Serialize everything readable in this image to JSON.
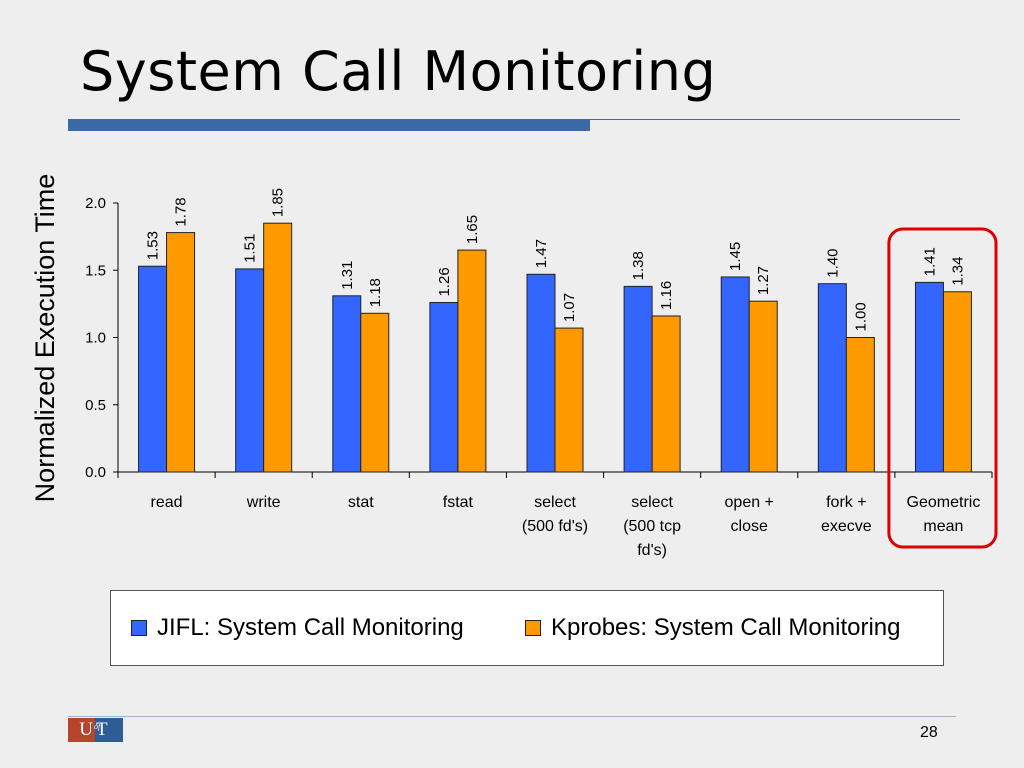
{
  "slide": {
    "title": "System Call Monitoring",
    "page_number": "28",
    "logo_text": [
      "U",
      "of",
      "T"
    ]
  },
  "colors": {
    "jifl": "#3366ff",
    "kprobes": "#ff9900",
    "highlight": "#dd0000",
    "title_rule": "#3a6aa6"
  },
  "chart_data": {
    "type": "bar",
    "ylabel": "Normalized Execution Time",
    "xlabel": "",
    "ylim": [
      0,
      2.0
    ],
    "yticks": [
      "0.0",
      "0.5",
      "1.0",
      "1.5",
      "2.0"
    ],
    "categories": [
      [
        "read"
      ],
      [
        "write"
      ],
      [
        "stat"
      ],
      [
        "fstat"
      ],
      [
        "select",
        "(500 fd's)"
      ],
      [
        "select",
        "(500 tcp",
        "fd's)"
      ],
      [
        "open +",
        "close"
      ],
      [
        "fork +",
        "execve"
      ],
      [
        "Geometric",
        "mean"
      ]
    ],
    "series": [
      {
        "name": "JIFL: System Call Monitoring",
        "values": [
          1.53,
          1.51,
          1.31,
          1.26,
          1.47,
          1.38,
          1.45,
          1.4,
          1.41
        ],
        "labels": [
          "1.53",
          "1.51",
          "1.31",
          "1.26",
          "1.47",
          "1.38",
          "1.45",
          "1.40",
          "1.41"
        ]
      },
      {
        "name": "Kprobes: System Call Monitoring",
        "values": [
          1.78,
          1.85,
          1.18,
          1.65,
          1.07,
          1.16,
          1.27,
          1.0,
          1.34
        ],
        "labels": [
          "1.78",
          "1.85",
          "1.18",
          "1.65",
          "1.07",
          "1.16",
          "1.27",
          "1.00",
          "1.34"
        ]
      }
    ],
    "highlighted_category": "Geometric mean",
    "grid": false,
    "legend_position": "bottom"
  }
}
